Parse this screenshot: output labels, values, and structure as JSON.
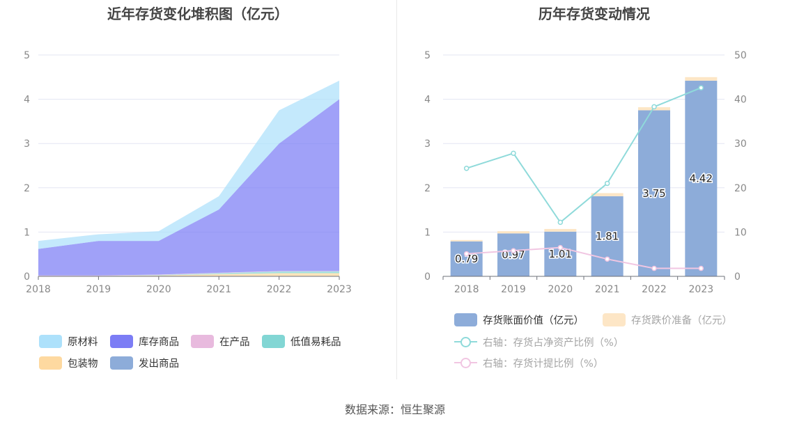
{
  "footer": {
    "source": "数据来源：恒生聚源"
  },
  "left_chart": {
    "title": "近年存货变化堆积图（亿元）",
    "legend": [
      {
        "name": "原材料",
        "color": "#ade1fb"
      },
      {
        "name": "库存商品",
        "color": "#7c7df5"
      },
      {
        "name": "在产品",
        "color": "#e8bade"
      },
      {
        "name": "低值易耗品",
        "color": "#82d6d4"
      },
      {
        "name": "包装物",
        "color": "#fed9a0"
      },
      {
        "name": "发出商品",
        "color": "#8dacd9"
      }
    ]
  },
  "right_chart": {
    "title": "历年存货变动情况",
    "legend": [
      {
        "name": "存货账面价值（亿元）",
        "color": "#8dacd9",
        "kind": "bar",
        "active": true
      },
      {
        "name": "存货跌价准备（亿元）",
        "color": "#fde6c6",
        "kind": "bar",
        "active": false
      },
      {
        "name": "右轴：存货占净资产比例（%）",
        "color": "#8fdada",
        "kind": "line",
        "active": false
      },
      {
        "name": "右轴：存货计提比例（%）",
        "color": "#f1c6e2",
        "kind": "line",
        "active": false
      }
    ]
  },
  "chart_data": [
    {
      "type": "area",
      "stacked": true,
      "title": "近年存货变化堆积图（亿元）",
      "x": [
        "2018",
        "2019",
        "2020",
        "2021",
        "2022",
        "2023"
      ],
      "ylim": [
        0,
        5
      ],
      "yticks": [
        0,
        1,
        2,
        3,
        4,
        5
      ],
      "grid": true,
      "legend_position": "bottom",
      "series": [
        {
          "name": "发出商品",
          "color": "#8dacd9",
          "values": [
            0,
            0,
            0,
            0,
            0,
            0
          ]
        },
        {
          "name": "包装物",
          "color": "#fed9a0",
          "values": [
            0.01,
            0.01,
            0.02,
            0.05,
            0.07,
            0.07
          ]
        },
        {
          "name": "低值易耗品",
          "color": "#82d6d4",
          "values": [
            0,
            0,
            0.01,
            0.02,
            0.04,
            0.04
          ]
        },
        {
          "name": "在产品",
          "color": "#e8bade",
          "values": [
            0.01,
            0.01,
            0.01,
            0.01,
            0.01,
            0.01
          ]
        },
        {
          "name": "库存商品",
          "color": "#7c7df5",
          "values": [
            0.6,
            0.78,
            0.76,
            1.43,
            2.88,
            3.88
          ]
        },
        {
          "name": "原材料",
          "color": "#ade1fb",
          "values": [
            0.18,
            0.15,
            0.22,
            0.3,
            0.75,
            0.42
          ]
        }
      ]
    },
    {
      "type": "bar",
      "stacked": true,
      "title": "历年存货变动情况",
      "categories": [
        "2018",
        "2019",
        "2020",
        "2021",
        "2022",
        "2023"
      ],
      "ylim": [
        0,
        5
      ],
      "yticks": [
        0,
        1,
        2,
        3,
        4,
        5
      ],
      "y2lim": [
        0,
        50
      ],
      "y2ticks": [
        0,
        10,
        20,
        30,
        40,
        50
      ],
      "grid": true,
      "legend_position": "bottom",
      "series": [
        {
          "name": "存货账面价值（亿元）",
          "axis": "left",
          "type": "bar",
          "color": "#8dacd9",
          "values": [
            0.79,
            0.97,
            1.01,
            1.81,
            3.75,
            4.42
          ],
          "labels": [
            "0.79",
            "0.97",
            "1.01",
            "1.81",
            "3.75",
            "4.42"
          ]
        },
        {
          "name": "存货跌价准备（亿元）",
          "axis": "left",
          "type": "bar",
          "color": "#fde6c6",
          "values": [
            0.03,
            0.05,
            0.06,
            0.07,
            0.07,
            0.08
          ]
        },
        {
          "name": "右轴：存货占净资产比例（%）",
          "axis": "right",
          "type": "line",
          "color": "#8fdada",
          "values": [
            24.4,
            27.8,
            12.2,
            21.0,
            38.3,
            42.6
          ]
        },
        {
          "name": "右轴：存货计提比例（%）",
          "axis": "right",
          "type": "line",
          "color": "#f1c6e2",
          "values": [
            5.1,
            5.8,
            6.5,
            3.9,
            1.8,
            1.8
          ]
        }
      ]
    }
  ]
}
